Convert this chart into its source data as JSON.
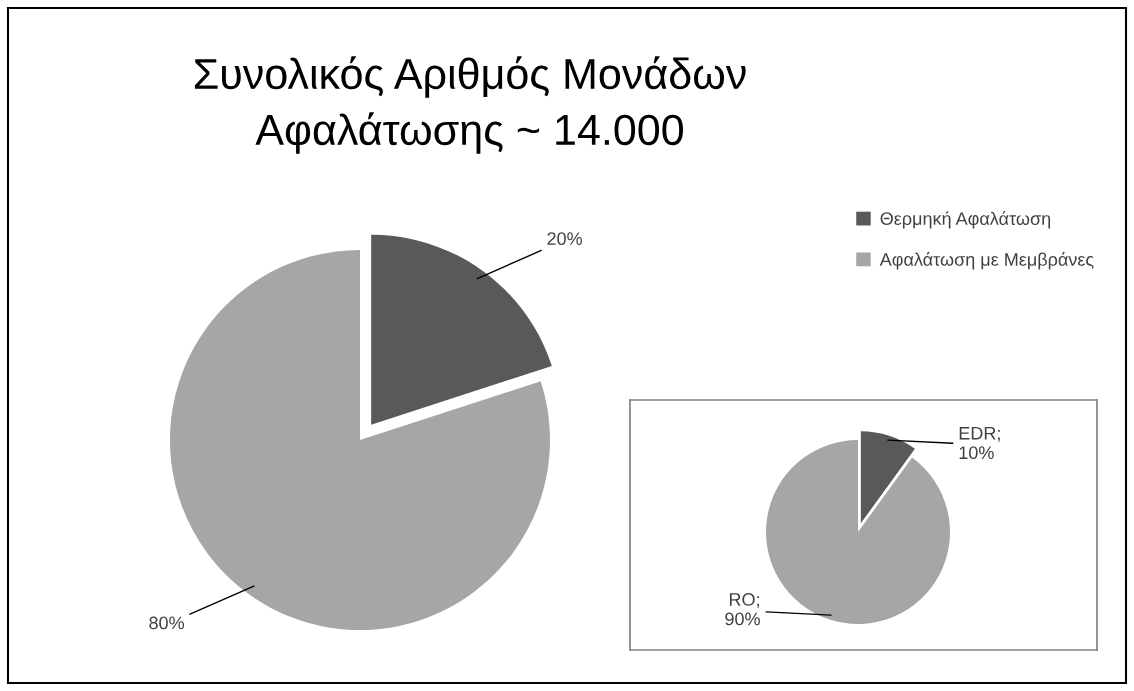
{
  "chart_data": [
    {
      "type": "pie",
      "title": "Συνολικός Αριθμός Μονάδων\nΑφαλάτωσης ~ 14.000",
      "categories": [
        "Θερμηκή Αφαλάτωση",
        "Αφαλάτωση με Μεμβράνες"
      ],
      "values": [
        20,
        80
      ],
      "colors": [
        "#595959",
        "#a6a6a6"
      ],
      "value_labels": [
        "20%",
        "80%"
      ],
      "legend": "top right"
    },
    {
      "type": "pie",
      "categories": [
        "EDR",
        "RO"
      ],
      "values": [
        10,
        90
      ],
      "colors": [
        "#595959",
        "#a6a6a6"
      ],
      "value_labels": [
        ";\n10%",
        ";\n90%"
      ]
    }
  ]
}
